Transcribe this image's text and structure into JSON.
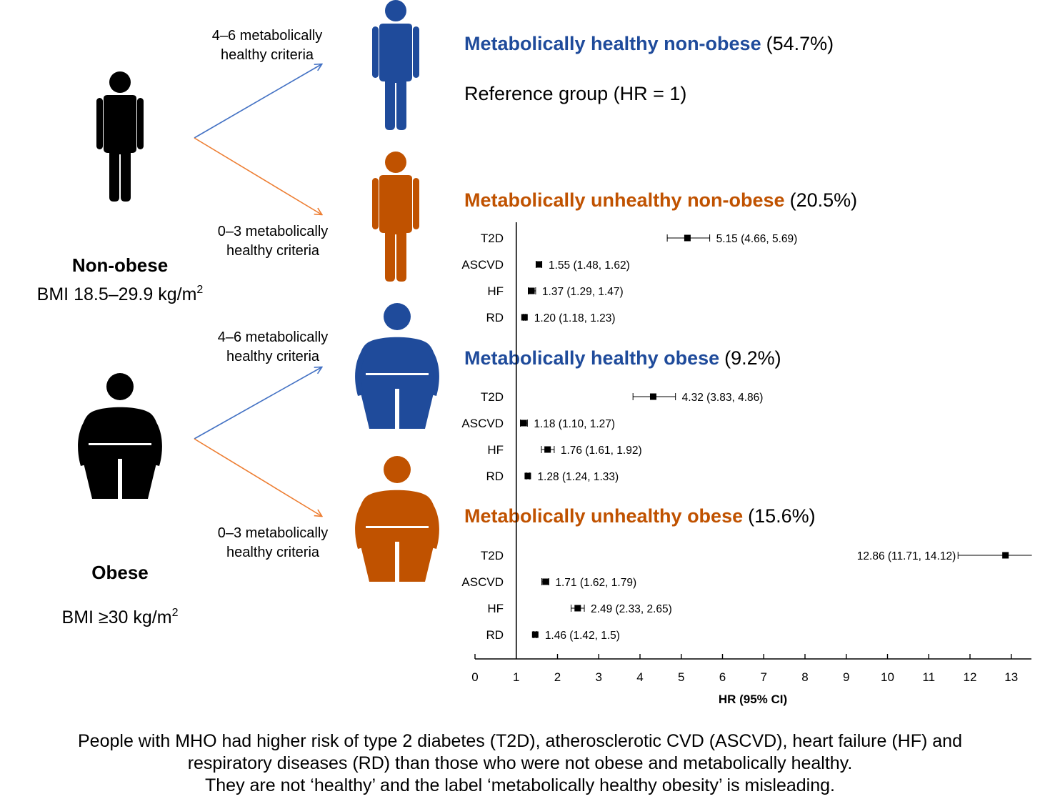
{
  "colors": {
    "healthy": "#1f4b9b",
    "unhealthy": "#c05200",
    "arrow_healthy": "#4472c4",
    "arrow_unhealthy": "#ed7d31",
    "black": "#000000"
  },
  "left_groups": [
    {
      "id": "non_obese",
      "title": "Non-obese",
      "bmi_prefix": "BMI 18.5–29.9 kg/m",
      "bmi_sup": "2"
    },
    {
      "id": "obese",
      "title": "Obese",
      "bmi_prefix": "BMI ≥30 kg/m",
      "bmi_sup": "2"
    }
  ],
  "arrow_labels": [
    {
      "line1": "4–6 metabolically",
      "line2": "healthy criteria"
    },
    {
      "line1": "0–3 metabolically",
      "line2": "healthy criteria"
    },
    {
      "line1": "4–6 metabolically",
      "line2": "healthy criteria"
    },
    {
      "line1": "0–3 metabolically",
      "line2": "healthy criteria"
    }
  ],
  "phenotypes": [
    {
      "name": "Metabolically healthy non-obese",
      "pct": "(54.7%)",
      "color": "healthy",
      "reference": "Reference group (HR = 1)"
    },
    {
      "name": "Metabolically unhealthy non-obese",
      "pct": "(20.5%)",
      "color": "unhealthy"
    },
    {
      "name": "Metabolically healthy obese",
      "pct": "(9.2%)",
      "color": "healthy"
    },
    {
      "name": "Metabolically unhealthy obese",
      "pct": "(15.6%)",
      "color": "unhealthy"
    }
  ],
  "chart_data": {
    "type": "forest",
    "xlabel": "HR (95% CI)",
    "xlim": [
      0,
      13.5
    ],
    "xticks": [
      "0",
      "1",
      "2",
      "3",
      "4",
      "5",
      "6",
      "7",
      "8",
      "9",
      "10",
      "11",
      "12",
      "13"
    ],
    "reference_line": 1,
    "groups": [
      {
        "name": "Metabolically unhealthy non-obese",
        "rows": [
          {
            "outcome": "T2D",
            "hr": 5.15,
            "lo": 4.66,
            "hi": 5.69,
            "label": "5.15 (4.66, 5.69)"
          },
          {
            "outcome": "ASCVD",
            "hr": 1.55,
            "lo": 1.48,
            "hi": 1.62,
            "label": "1.55 (1.48, 1.62)"
          },
          {
            "outcome": "HF",
            "hr": 1.37,
            "lo": 1.29,
            "hi": 1.47,
            "label": "1.37 (1.29, 1.47)"
          },
          {
            "outcome": "RD",
            "hr": 1.2,
            "lo": 1.18,
            "hi": 1.23,
            "label": "1.20 (1.18, 1.23)"
          }
        ]
      },
      {
        "name": "Metabolically healthy obese",
        "rows": [
          {
            "outcome": "T2D",
            "hr": 4.32,
            "lo": 3.83,
            "hi": 4.86,
            "label": "4.32 (3.83, 4.86)"
          },
          {
            "outcome": "ASCVD",
            "hr": 1.18,
            "lo": 1.1,
            "hi": 1.27,
            "label": "1.18 (1.10, 1.27)"
          },
          {
            "outcome": "HF",
            "hr": 1.76,
            "lo": 1.61,
            "hi": 1.92,
            "label": "1.76 (1.61, 1.92)"
          },
          {
            "outcome": "RD",
            "hr": 1.28,
            "lo": 1.24,
            "hi": 1.33,
            "label": "1.28 (1.24, 1.33)"
          }
        ]
      },
      {
        "name": "Metabolically unhealthy obese",
        "rows": [
          {
            "outcome": "T2D",
            "hr": 12.86,
            "lo": 11.71,
            "hi": 14.12,
            "label": "12.86 (11.71, 14.12)",
            "label_side": "left"
          },
          {
            "outcome": "ASCVD",
            "hr": 1.71,
            "lo": 1.62,
            "hi": 1.79,
            "label": "1.71 (1.62, 1.79)"
          },
          {
            "outcome": "HF",
            "hr": 2.49,
            "lo": 2.33,
            "hi": 2.65,
            "label": "2.49 (2.33, 2.65)"
          },
          {
            "outcome": "RD",
            "hr": 1.46,
            "lo": 1.42,
            "hi": 1.5,
            "label": "1.46 (1.42, 1.5)"
          }
        ]
      }
    ]
  },
  "footer": [
    "People with MHO had higher risk of type 2 diabetes (T2D), atherosclerotic CVD (ASCVD), heart failure (HF) and",
    "respiratory diseases (RD) than those who were not obese and metabolically healthy.",
    "They are not ‘healthy’ and the label ‘metabolically healthy obesity’ is misleading."
  ]
}
